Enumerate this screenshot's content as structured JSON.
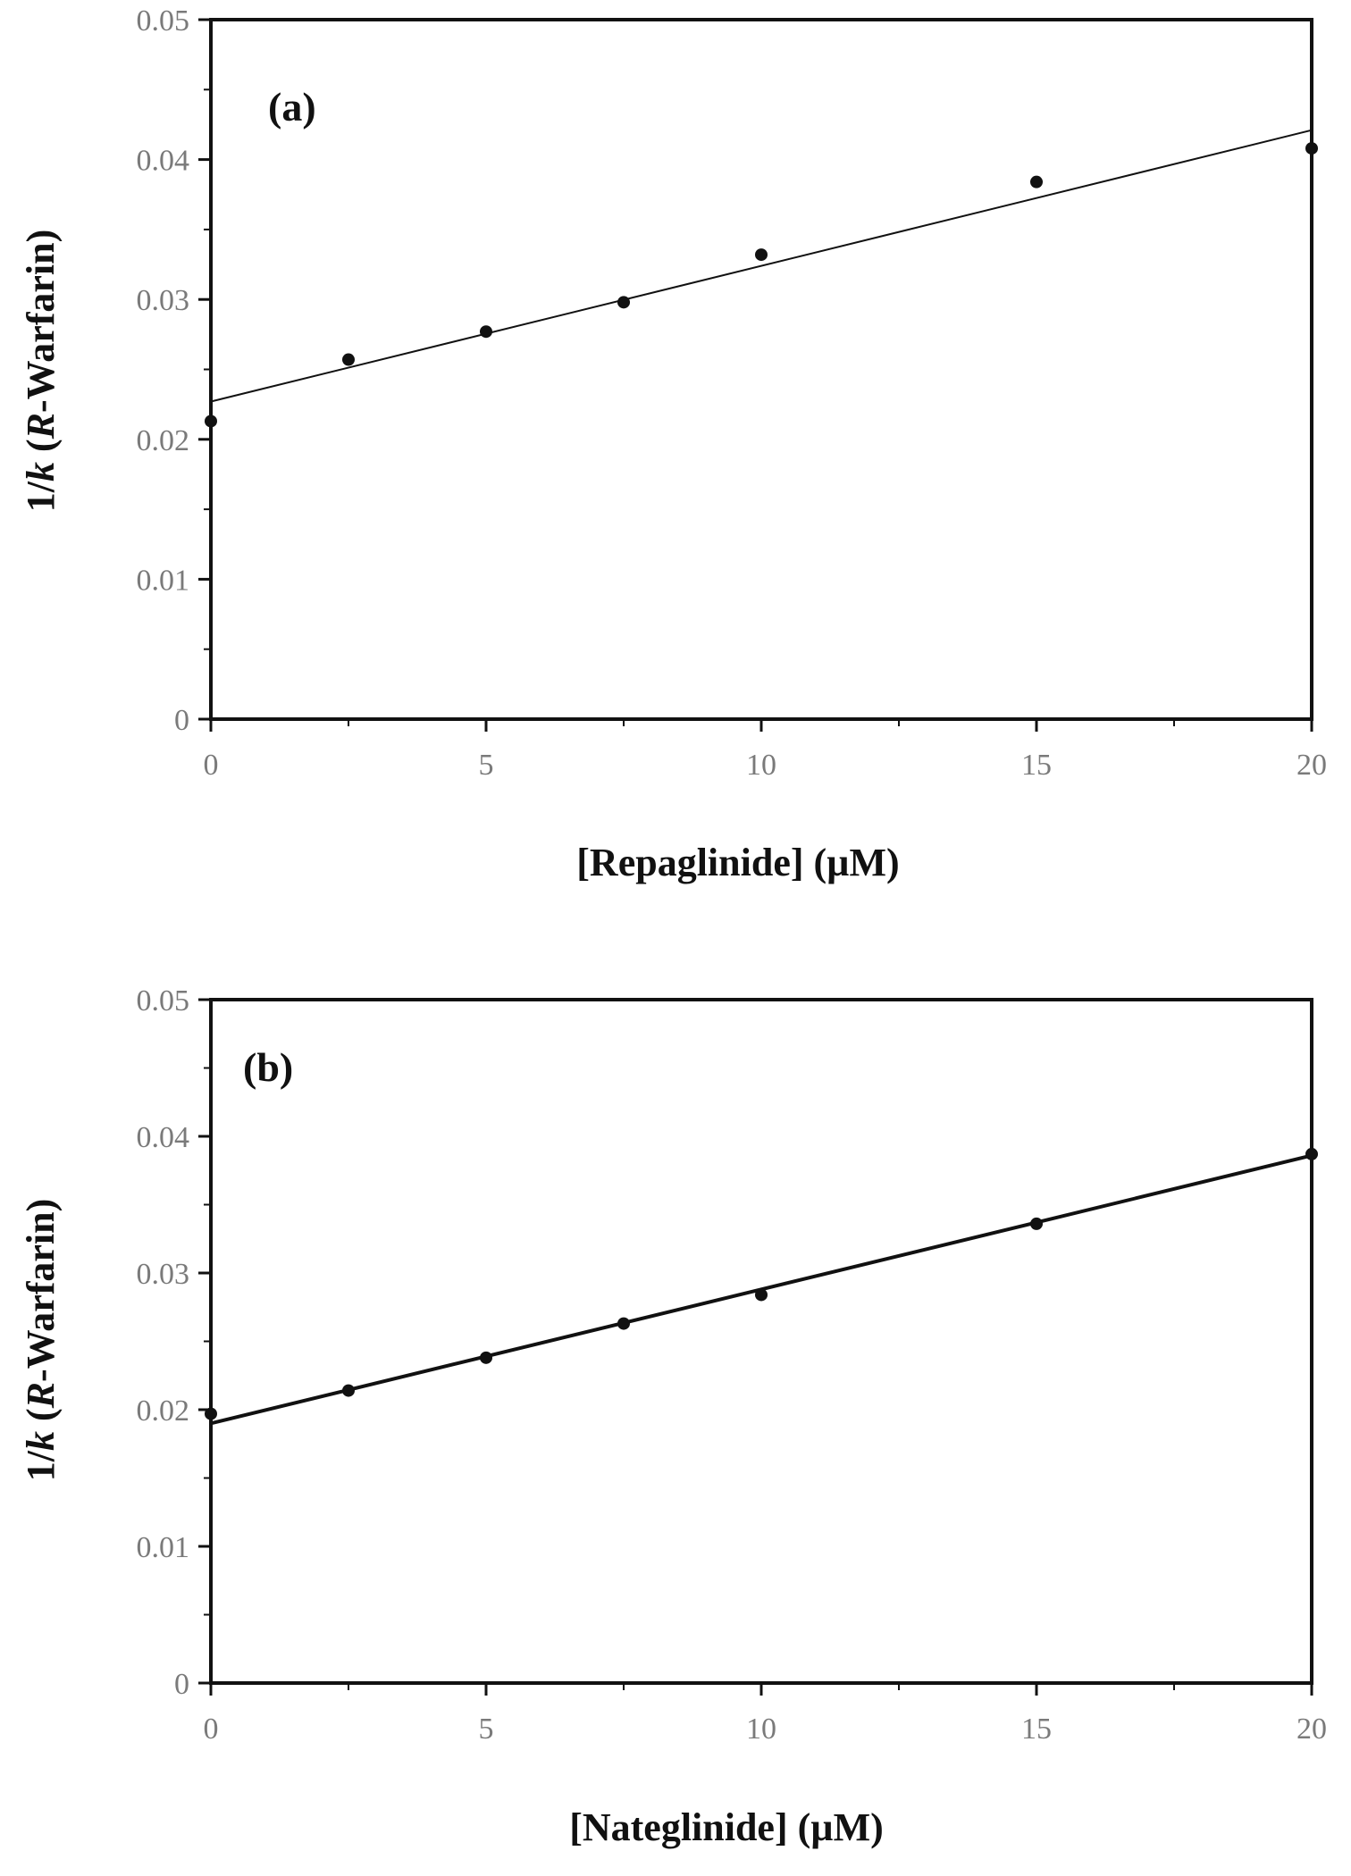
{
  "colors": {
    "frame": "#111111",
    "marker": "#111111",
    "fit_line": "#111111",
    "tick_text": "#7a7a7a"
  },
  "chart_data": [
    {
      "type": "scatter",
      "panel_label": "(a)",
      "xlabel": "[Repaglinide] (µM)",
      "ylabel": "1/k (R-Warfarin)",
      "ylabel_parts": {
        "a": "1/",
        "b": "k",
        "c": " (",
        "d": "R",
        "e": "-Warfarin)"
      },
      "xlim": [
        0,
        20
      ],
      "ylim": [
        0,
        0.05
      ],
      "x_ticks": [
        0,
        5,
        10,
        15,
        20
      ],
      "x_tick_labels": [
        "0",
        "5",
        "10",
        "15",
        "20"
      ],
      "y_ticks": [
        0,
        0.01,
        0.02,
        0.03,
        0.04,
        0.05
      ],
      "y_tick_labels": [
        "0",
        "0.01",
        "0.02",
        "0.03",
        "0.04",
        "0.05"
      ],
      "grid": false,
      "series": [
        {
          "x": [
            0,
            2.5,
            5,
            7.5,
            10,
            15,
            20
          ],
          "y": [
            0.0213,
            0.0257,
            0.0277,
            0.0298,
            0.0332,
            0.0384,
            0.0408
          ]
        }
      ],
      "fit_line": {
        "x": [
          0,
          20
        ],
        "y": [
          0.0227,
          0.0421
        ]
      }
    },
    {
      "type": "scatter",
      "panel_label": "(b)",
      "xlabel": "[Nateglinide] (µM)",
      "ylabel": "1/k (R-Warfarin)",
      "ylabel_parts": {
        "a": "1/",
        "b": "k",
        "c": " (",
        "d": "R",
        "e": "-Warfarin)"
      },
      "xlim": [
        0,
        20
      ],
      "ylim": [
        0,
        0.05
      ],
      "x_ticks": [
        0,
        5,
        10,
        15,
        20
      ],
      "x_tick_labels": [
        "0",
        "5",
        "10",
        "15",
        "20"
      ],
      "y_ticks": [
        0,
        0.01,
        0.02,
        0.03,
        0.04,
        0.05
      ],
      "y_tick_labels": [
        "0",
        "0.01",
        "0.02",
        "0.03",
        "0.04",
        "0.05"
      ],
      "grid": false,
      "series": [
        {
          "x": [
            0,
            2.5,
            5,
            7.5,
            10,
            15,
            20
          ],
          "y": [
            0.0197,
            0.0214,
            0.0238,
            0.0263,
            0.0284,
            0.0336,
            0.0387
          ]
        }
      ],
      "fit_line": {
        "x": [
          0,
          20
        ],
        "y": [
          0.019,
          0.0386
        ]
      }
    }
  ]
}
